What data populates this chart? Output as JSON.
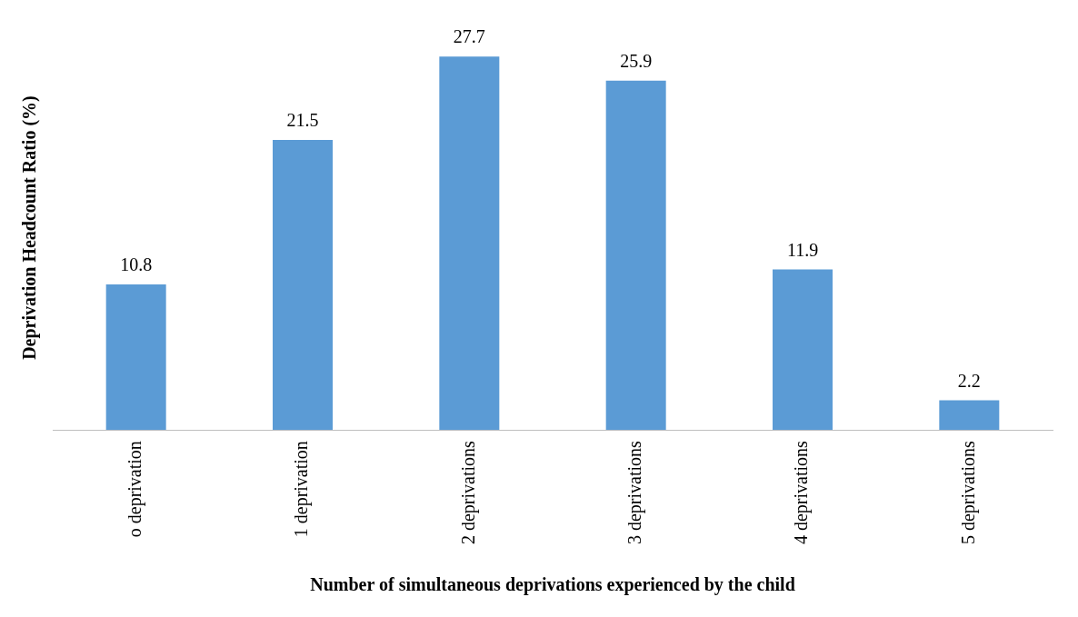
{
  "chart_data": {
    "type": "bar",
    "xlabel": "Number of simultaneous deprivations experienced by the child",
    "ylabel": "Deprivation Headcount Ratio (%)",
    "categories": [
      "o deprivation",
      "1 deprivation",
      "2 deprivations",
      "3 deprivations",
      "4 deprivations",
      "5 deprivations"
    ],
    "values": [
      10.8,
      21.5,
      27.7,
      25.9,
      11.9,
      2.2
    ],
    "color": "#5b9bd5",
    "data_labels": true,
    "grid": false,
    "legend": false
  }
}
